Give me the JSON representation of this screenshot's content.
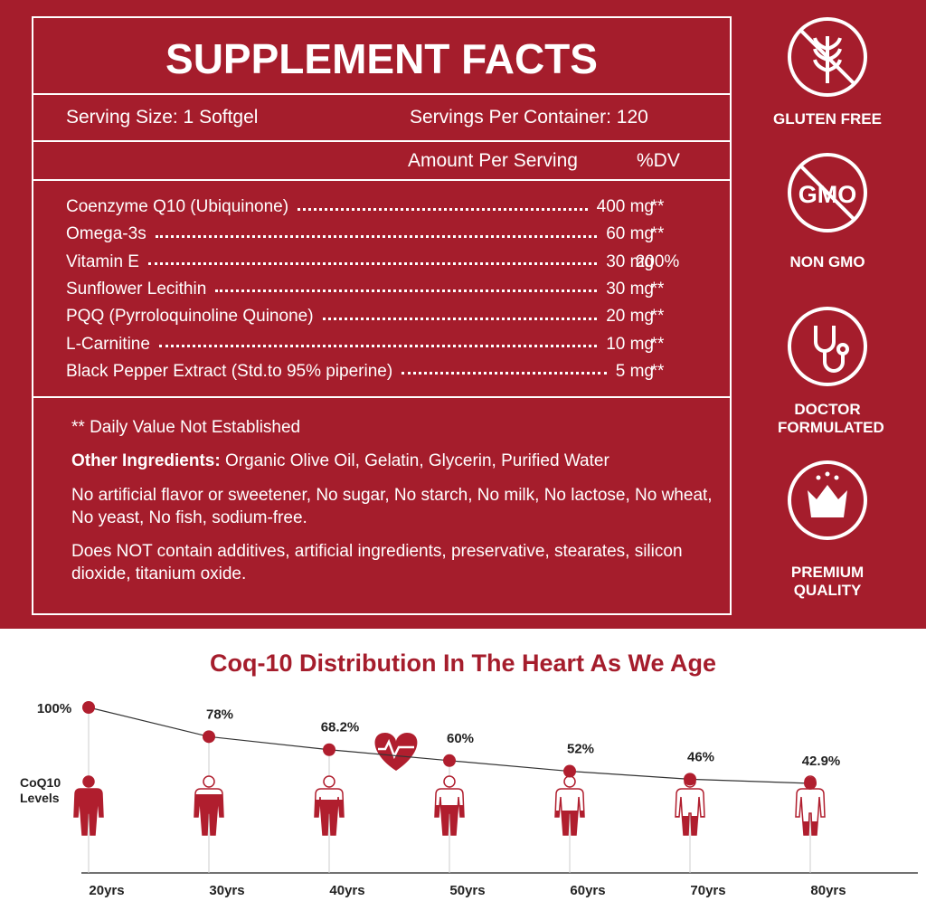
{
  "supplement_facts": {
    "title": "SUPPLEMENT FACTS",
    "serving_size": "Serving Size: 1 Softgel",
    "servings_per_container": "Servings Per Container: 120",
    "amount_header": "Amount Per Serving",
    "dv_header": "%DV",
    "rows": [
      [
        "Coenzyme Q10 (Ubiquinone)",
        "400 mg",
        "**"
      ],
      [
        "Omega-3s",
        "60 mg",
        "**"
      ],
      [
        "Vitamin E",
        "30 mg",
        "200%"
      ],
      [
        "Sunflower Lecithin",
        "30 mg",
        "**"
      ],
      [
        "PQQ (Pyrroloquinoline Quinone)",
        "20 mg",
        "**"
      ],
      [
        "L-Carnitine",
        "10 mg",
        "**"
      ],
      [
        "Black Pepper Extract (Std.to 95% piperine)",
        "5 mg",
        "**"
      ]
    ],
    "daily_value_note": "** Daily Value Not Established",
    "other_ingredients_label": "Other Ingredients:",
    "other_ingredients": "Organic Olive Oil, Gelatin, Glycerin, Purified Water",
    "note_1": "No artificial flavor or sweetener, No sugar, No starch, No milk, No lactose, No wheat, No yeast, No fish, sodium-free.",
    "note_2": "Does NOT contain additives, artificial ingredients, preservative, stearates, silicon dioxide, titanium oxide."
  },
  "badges": [
    {
      "label": "GLUTEN FREE"
    },
    {
      "label": "NON GMO",
      "icon_text": "GMO"
    },
    {
      "label": "DOCTOR FORMULATED"
    },
    {
      "label": "PREMIUM QUALITY"
    }
  ],
  "chart_data": {
    "type": "line",
    "title": "Coq-10 Distribution In The Heart As We Age",
    "y_label": "CoQ10 Levels",
    "categories": [
      "20yrs",
      "30yrs",
      "40yrs",
      "50yrs",
      "60yrs",
      "70yrs",
      "80yrs"
    ],
    "values": [
      100,
      78,
      68.2,
      60,
      52,
      46,
      42.9
    ],
    "value_labels": [
      "100%",
      "78%",
      "68.2%",
      "60%",
      "52%",
      "46%",
      "42.9%"
    ],
    "color": "#b01e2e"
  }
}
